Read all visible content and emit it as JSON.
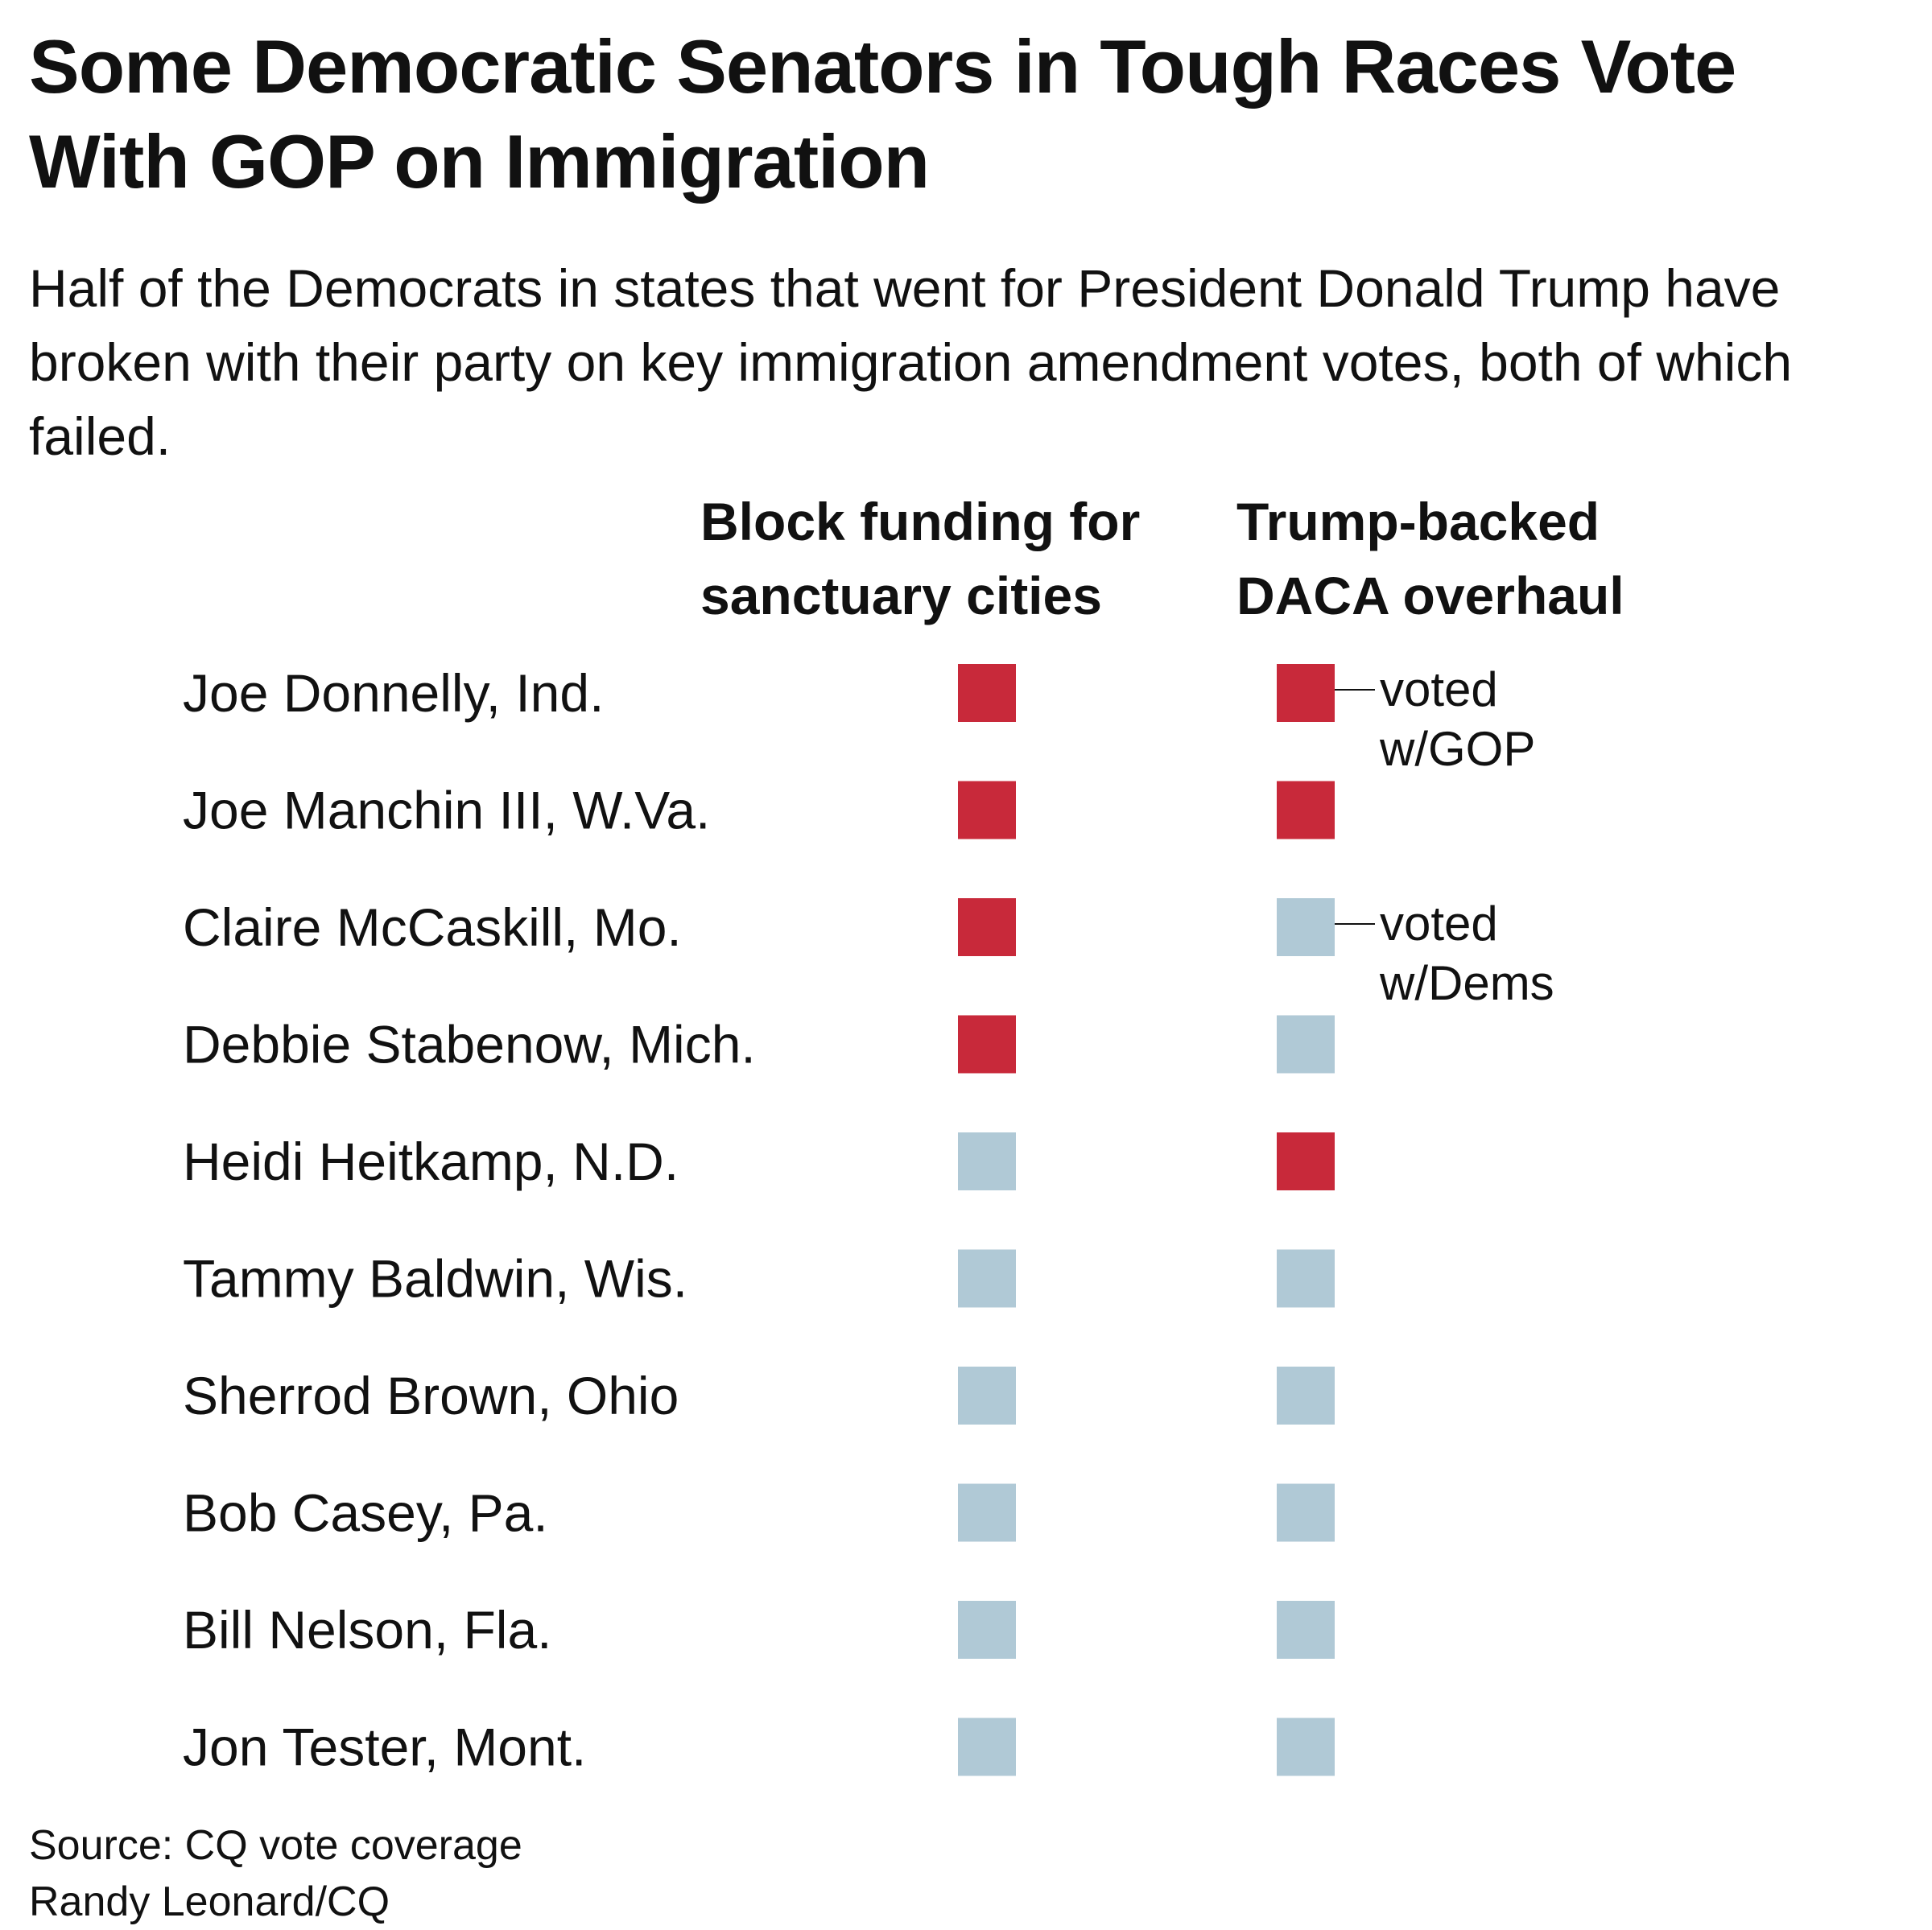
{
  "chart_data": {
    "type": "table",
    "title": "Some Democratic Senators in Tough Races Vote With GOP on Immigration",
    "subtitle": "Half of the Democrats in states that went for President Donald Trump have broken with their party on key immigration amendment votes, both of which failed.",
    "columns": [
      {
        "label": "Block funding for\nsanctuary cities"
      },
      {
        "label": "Trump-backed\nDACA overhaul"
      }
    ],
    "rows": [
      {
        "name": "Joe Donnelly, Ind.",
        "votes": [
          "GOP",
          "GOP"
        ]
      },
      {
        "name": "Joe Manchin III, W.Va.",
        "votes": [
          "GOP",
          "GOP"
        ]
      },
      {
        "name": "Claire McCaskill, Mo.",
        "votes": [
          "GOP",
          "Dems"
        ]
      },
      {
        "name": "Debbie Stabenow, Mich.",
        "votes": [
          "GOP",
          "Dems"
        ]
      },
      {
        "name": "Heidi Heitkamp, N.D.",
        "votes": [
          "Dems",
          "GOP"
        ]
      },
      {
        "name": "Tammy Baldwin, Wis.",
        "votes": [
          "Dems",
          "Dems"
        ]
      },
      {
        "name": "Sherrod Brown, Ohio",
        "votes": [
          "Dems",
          "Dems"
        ]
      },
      {
        "name": "Bob Casey, Pa.",
        "votes": [
          "Dems",
          "Dems"
        ]
      },
      {
        "name": "Bill Nelson, Fla.",
        "votes": [
          "Dems",
          "Dems"
        ]
      },
      {
        "name": "Jon Tester, Mont.",
        "votes": [
          "Dems",
          "Dems"
        ]
      }
    ],
    "annotations": [
      {
        "row": 0,
        "column": 1,
        "lines": [
          "voted",
          "w/GOP"
        ]
      },
      {
        "row": 2,
        "column": 1,
        "lines": [
          "voted",
          "w/Dems"
        ]
      }
    ],
    "colors": {
      "GOP": "#c8293a",
      "Dems": "#b0c9d6"
    }
  },
  "footer": {
    "source": "Source: CQ vote coverage",
    "credit": "Randy Leonard/CQ"
  }
}
